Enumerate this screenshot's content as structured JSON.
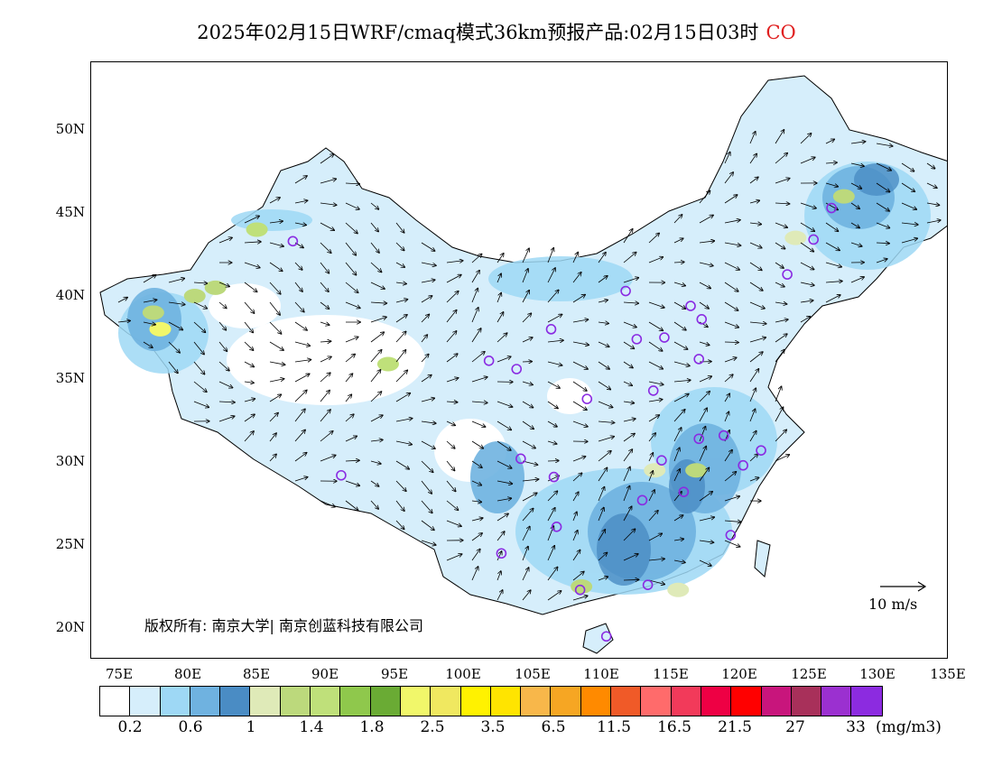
{
  "header": {
    "title": "2025年02月15日WRF/cmaq模式36km预报产品:02月15日03时",
    "species": "CO",
    "species_color": "#e02020"
  },
  "axes": {
    "lat_labels": [
      "50N",
      "45N",
      "40N",
      "35N",
      "30N",
      "25N",
      "20N"
    ],
    "lon_labels": [
      "75E",
      "80E",
      "85E",
      "90E",
      "95E",
      "100E",
      "105E",
      "110E",
      "115E",
      "120E",
      "125E",
      "130E",
      "135E"
    ]
  },
  "copyright": "版权所有: 南京大学| 南京创蓝科技有限公司",
  "wind_reference": {
    "label": "10 m/s"
  },
  "legend": {
    "colors": [
      "#ffffff",
      "#d6eefb",
      "#9ed8f5",
      "#6fb2e0",
      "#4a8cc4",
      "#dfeab8",
      "#bcd97c",
      "#bfe07a",
      "#8fc84c",
      "#6aab34",
      "#f1f76a",
      "#f0e860",
      "#fff200",
      "#ffe400",
      "#f8b74a",
      "#f6a623",
      "#ff8a00",
      "#f05a28",
      "#ff6b6b",
      "#f23a5a",
      "#ee0044",
      "#ff0000",
      "#c8157c",
      "#a8305a",
      "#9b30d0",
      "#8c2be0"
    ],
    "labels": [
      "0.2",
      "0.6",
      "1",
      "1.4",
      "1.8",
      "2.5",
      "3.5",
      "6.5",
      "11.5",
      "16.5",
      "21.5",
      "27",
      "33"
    ],
    "unit": "(mg/m3)"
  },
  "map": {
    "type": "concentration-map",
    "region": "China",
    "lon_range": [
      73,
      135
    ],
    "lat_range": [
      18,
      54
    ],
    "legend_placement": "bottom",
    "stations": [
      [
        87.6,
        43.8
      ],
      [
        91.1,
        29.7
      ],
      [
        101.8,
        36.6
      ],
      [
        103.8,
        36.1
      ],
      [
        106.3,
        38.5
      ],
      [
        104.1,
        30.7
      ],
      [
        106.5,
        29.6
      ],
      [
        106.7,
        26.6
      ],
      [
        102.7,
        25.0
      ],
      [
        108.4,
        22.8
      ],
      [
        110.3,
        20.0
      ],
      [
        113.3,
        23.1
      ],
      [
        112.9,
        28.2
      ],
      [
        114.3,
        30.6
      ],
      [
        115.9,
        28.7
      ],
      [
        117.0,
        31.9
      ],
      [
        118.8,
        32.1
      ],
      [
        120.2,
        30.3
      ],
      [
        121.5,
        31.2
      ],
      [
        119.3,
        26.1
      ],
      [
        117.0,
        36.7
      ],
      [
        113.7,
        34.8
      ],
      [
        112.5,
        37.9
      ],
      [
        114.5,
        38.0
      ],
      [
        116.4,
        39.9
      ],
      [
        117.2,
        39.1
      ],
      [
        111.7,
        40.8
      ],
      [
        108.9,
        34.3
      ],
      [
        123.4,
        41.8
      ],
      [
        125.3,
        43.9
      ],
      [
        126.6,
        45.8
      ]
    ],
    "high_spots": [
      [
        77.5,
        39.5,
        "#bcd97c"
      ],
      [
        78.0,
        38.5,
        "#f1f76a"
      ],
      [
        85.0,
        44.5,
        "#bfe07a"
      ],
      [
        94.5,
        36.4,
        "#bfe07a"
      ],
      [
        113.8,
        30.0,
        "#dfeab8"
      ],
      [
        116.8,
        30.0,
        "#bcd97c"
      ],
      [
        108.5,
        23.0,
        "#bcd97c"
      ],
      [
        115.5,
        22.8,
        "#dfeab8"
      ],
      [
        127.5,
        46.5,
        "#bcd97c"
      ],
      [
        124.0,
        44.0,
        "#dfeab8"
      ],
      [
        82.0,
        41.0,
        "#bcd97c"
      ],
      [
        80.5,
        40.5,
        "#bcd97c"
      ]
    ]
  }
}
